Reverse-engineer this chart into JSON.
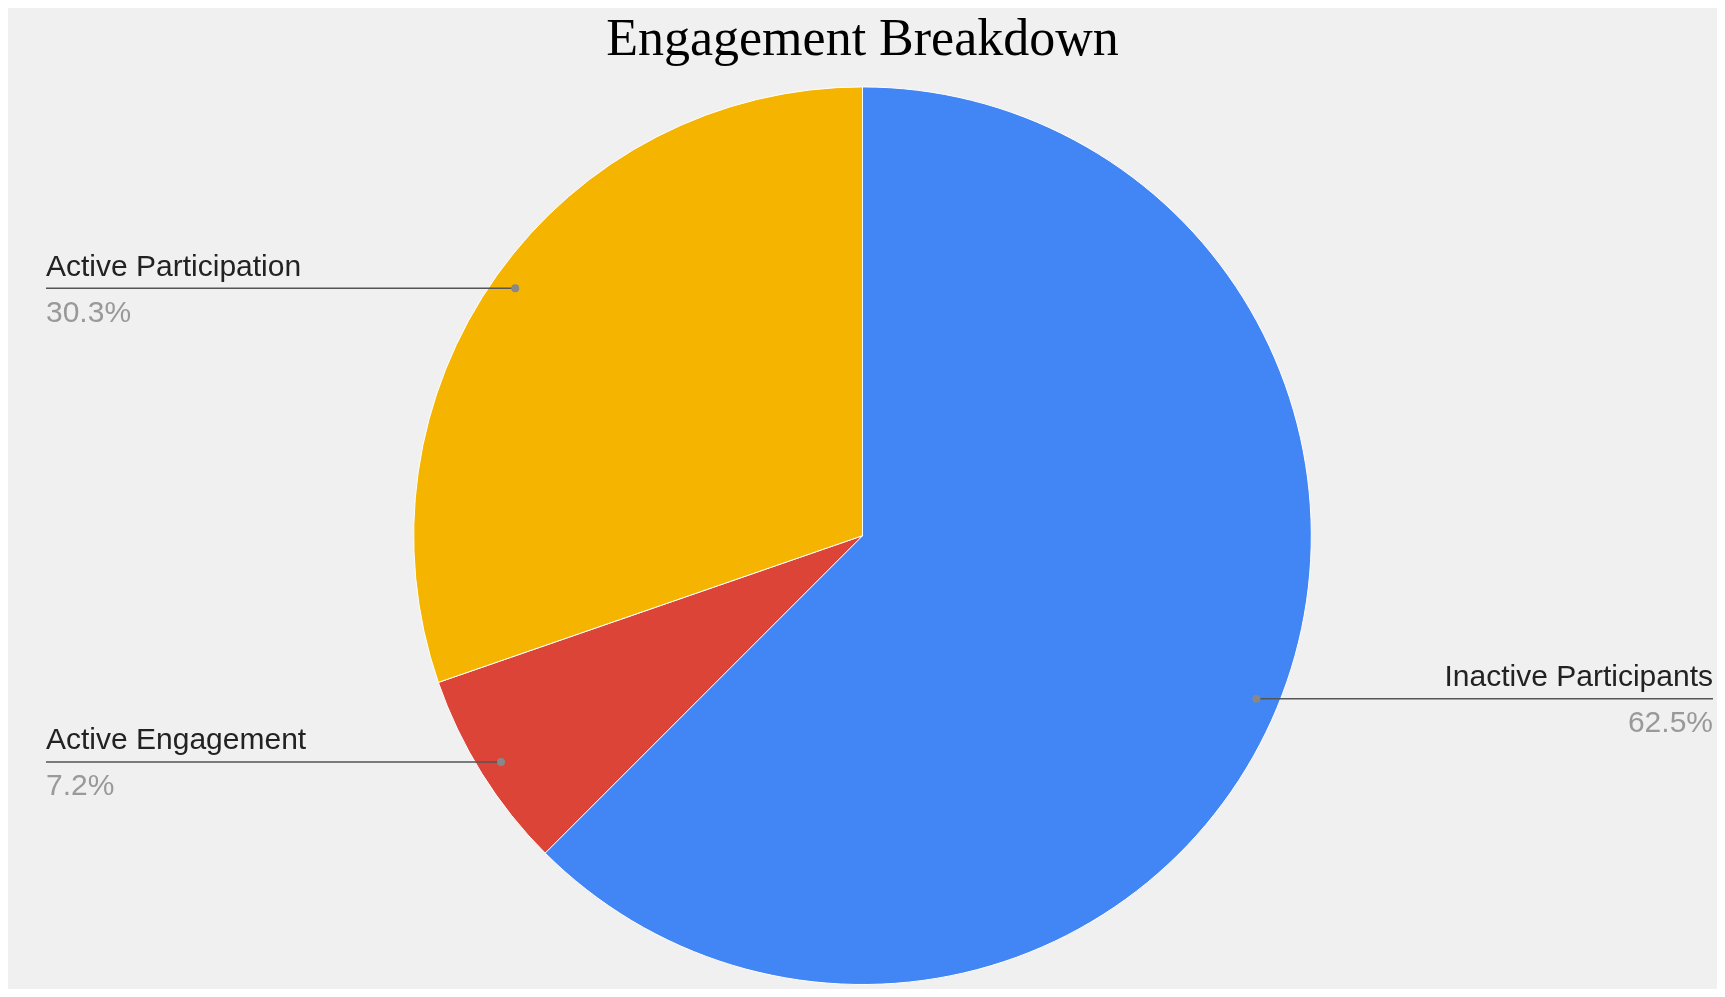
{
  "chart_data": {
    "type": "pie",
    "title": "Engagement Breakdown",
    "categories": [
      "Inactive Participants",
      "Active Engagement",
      "Active Participation"
    ],
    "values": [
      62.5,
      7.2,
      30.3
    ],
    "colors": [
      "#4285f4",
      "#db4437",
      "#f4b400"
    ],
    "value_labels": [
      "62.5%",
      "7.2%",
      "30.3%"
    ],
    "legend": false
  }
}
